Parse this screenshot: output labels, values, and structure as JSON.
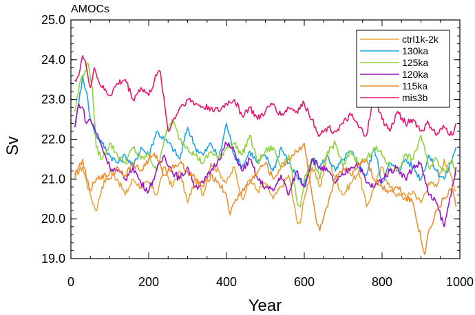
{
  "chart_data": {
    "type": "line",
    "title": "AMOCs",
    "xlabel": "Year",
    "ylabel": "Sv",
    "xlim": [
      0,
      1000
    ],
    "ylim": [
      19.0,
      25.0
    ],
    "x_ticks": [
      0,
      200,
      400,
      600,
      800,
      1000
    ],
    "y_ticks": [
      19.0,
      20.0,
      21.0,
      22.0,
      23.0,
      24.0,
      25.0
    ],
    "y_tick_labels": [
      "19.0",
      "20.0",
      "21.0",
      "22.0",
      "23.0",
      "24.0",
      "25.0"
    ],
    "x_tick_labels": [
      "0",
      "200",
      "400",
      "600",
      "800",
      "1000"
    ],
    "legend_position": "top-right",
    "grid": false,
    "series": [
      {
        "name": "ctrl1k-2k",
        "color": "#e8a23a",
        "x": [
          10,
          30,
          50,
          65,
          80,
          100,
          120,
          140,
          160,
          180,
          200,
          220,
          240,
          260,
          280,
          300,
          320,
          340,
          360,
          380,
          400,
          420,
          440,
          460,
          480,
          500,
          520,
          540,
          560,
          580,
          590,
          600,
          620,
          640,
          660,
          680,
          700,
          720,
          740,
          760,
          780,
          800,
          820,
          840,
          860,
          880,
          900,
          920,
          940,
          960,
          980,
          990
        ],
        "values": [
          21.1,
          21.3,
          20.6,
          20.2,
          20.8,
          21.2,
          21.0,
          20.6,
          21.0,
          20.8,
          20.9,
          20.6,
          21.3,
          20.8,
          21.2,
          20.4,
          21.0,
          20.6,
          21.4,
          21.2,
          20.9,
          21.3,
          20.5,
          21.0,
          20.7,
          20.9,
          20.5,
          20.8,
          21.1,
          20.0,
          19.9,
          20.5,
          21.3,
          20.8,
          21.6,
          21.0,
          20.6,
          20.9,
          21.2,
          20.3,
          20.8,
          21.3,
          20.8,
          20.6,
          20.5,
          20.7,
          20.4,
          20.9,
          20.8,
          21.5,
          21.0,
          20.7
        ]
      },
      {
        "name": "130ka",
        "color": "#1aa3e8",
        "x": [
          10,
          20,
          30,
          40,
          50,
          60,
          80,
          100,
          120,
          140,
          160,
          180,
          200,
          220,
          240,
          260,
          280,
          300,
          320,
          340,
          360,
          380,
          400,
          420,
          440,
          460,
          480,
          500,
          520,
          540,
          560,
          580,
          600,
          620,
          640,
          660,
          680,
          700,
          720,
          740,
          760,
          780,
          800,
          820,
          840,
          860,
          880,
          900,
          920,
          940,
          960,
          980,
          990
        ],
        "values": [
          22.3,
          22.9,
          23.6,
          23.2,
          22.5,
          22.2,
          21.9,
          21.6,
          21.4,
          21.6,
          21.3,
          21.8,
          21.6,
          22.2,
          22.0,
          21.8,
          21.5,
          22.3,
          21.8,
          21.6,
          21.9,
          21.5,
          22.4,
          21.6,
          21.3,
          21.7,
          21.4,
          21.6,
          21.2,
          21.8,
          21.4,
          21.1,
          20.8,
          21.5,
          21.3,
          21.6,
          21.2,
          21.5,
          21.7,
          21.3,
          21.1,
          21.8,
          20.9,
          21.4,
          21.2,
          21.5,
          21.3,
          21.0,
          21.6,
          21.2,
          21.0,
          21.5,
          21.8
        ]
      },
      {
        "name": "125ka",
        "color": "#8fd43a",
        "x": [
          10,
          25,
          35,
          45,
          55,
          65,
          80,
          100,
          120,
          140,
          160,
          180,
          200,
          220,
          240,
          260,
          280,
          300,
          320,
          340,
          360,
          380,
          400,
          420,
          440,
          460,
          480,
          500,
          520,
          540,
          560,
          580,
          590,
          600,
          620,
          640,
          660,
          680,
          700,
          720,
          740,
          760,
          780,
          800,
          820,
          840,
          860,
          880,
          900,
          920,
          940,
          960,
          980,
          990
        ],
        "values": [
          22.7,
          23.5,
          23.7,
          23.9,
          23.3,
          21.8,
          21.5,
          21.9,
          21.6,
          21.4,
          21.8,
          21.5,
          21.6,
          21.2,
          22.0,
          22.5,
          22.0,
          21.8,
          21.6,
          21.4,
          21.7,
          21.5,
          21.8,
          21.9,
          21.6,
          22.1,
          21.4,
          21.7,
          21.8,
          21.3,
          21.6,
          20.5,
          20.3,
          21.0,
          21.5,
          21.0,
          21.7,
          21.9,
          21.3,
          21.7,
          21.4,
          21.5,
          21.8,
          21.6,
          21.3,
          21.2,
          21.6,
          21.5,
          22.1,
          21.3,
          21.5,
          21.2,
          21.5,
          21.1
        ]
      },
      {
        "name": "120ka",
        "color": "#9b12c4",
        "x": [
          10,
          20,
          30,
          40,
          50,
          60,
          80,
          100,
          120,
          140,
          160,
          180,
          200,
          220,
          240,
          260,
          280,
          300,
          320,
          340,
          360,
          380,
          400,
          420,
          440,
          460,
          480,
          500,
          520,
          540,
          560,
          580,
          600,
          620,
          640,
          660,
          680,
          700,
          720,
          740,
          760,
          780,
          800,
          820,
          840,
          860,
          880,
          900,
          920,
          940,
          960,
          980,
          990
        ],
        "values": [
          22.3,
          22.9,
          22.8,
          22.4,
          22.5,
          22.3,
          21.8,
          21.3,
          21.2,
          21.0,
          21.3,
          20.9,
          20.7,
          21.2,
          21.6,
          21.2,
          21.0,
          21.3,
          20.8,
          20.9,
          21.2,
          21.5,
          21.9,
          21.7,
          21.2,
          21.5,
          21.0,
          20.8,
          20.7,
          21.1,
          20.6,
          21.2,
          20.8,
          21.5,
          21.3,
          21.2,
          20.9,
          21.1,
          21.3,
          21.4,
          20.9,
          20.8,
          21.0,
          21.2,
          21.3,
          21.0,
          21.3,
          21.4,
          20.6,
          20.4,
          19.8,
          20.8,
          21.3
        ]
      },
      {
        "name": "115ka",
        "color": "#ef8b2f",
        "x": [
          10,
          20,
          30,
          40,
          50,
          60,
          80,
          100,
          120,
          140,
          160,
          180,
          200,
          220,
          240,
          260,
          280,
          300,
          320,
          340,
          360,
          380,
          400,
          410,
          420,
          440,
          460,
          480,
          500,
          520,
          540,
          560,
          580,
          600,
          610,
          620,
          630,
          640,
          660,
          680,
          700,
          720,
          740,
          760,
          780,
          800,
          820,
          840,
          860,
          880,
          900,
          910,
          920,
          940,
          960,
          980,
          990
        ],
        "values": [
          21.0,
          21.3,
          21.5,
          21.0,
          20.7,
          20.9,
          21.1,
          21.0,
          21.3,
          21.1,
          21.4,
          21.2,
          21.5,
          21.6,
          21.1,
          21.3,
          21.4,
          21.2,
          21.0,
          20.8,
          21.1,
          20.9,
          20.6,
          20.1,
          20.4,
          20.7,
          20.9,
          21.2,
          21.4,
          21.0,
          21.3,
          21.5,
          21.7,
          21.9,
          21.2,
          20.6,
          20.0,
          19.7,
          20.3,
          21.0,
          21.3,
          21.1,
          21.4,
          21.5,
          21.0,
          20.8,
          20.7,
          20.8,
          20.6,
          20.4,
          19.5,
          19.1,
          19.7,
          20.2,
          20.5,
          20.8,
          20.3
        ]
      },
      {
        "name": "mis3b",
        "color": "#e8146e",
        "x": [
          10,
          20,
          30,
          40,
          50,
          60,
          70,
          80,
          100,
          120,
          140,
          160,
          180,
          200,
          220,
          230,
          250,
          260,
          280,
          300,
          320,
          340,
          360,
          380,
          400,
          420,
          440,
          460,
          480,
          500,
          520,
          540,
          560,
          580,
          600,
          620,
          640,
          660,
          680,
          700,
          720,
          740,
          760,
          780,
          800,
          820,
          840,
          860,
          880,
          900,
          920,
          940,
          960,
          980,
          990
        ],
        "values": [
          23.5,
          23.6,
          24.1,
          23.8,
          23.3,
          23.8,
          23.5,
          23.3,
          23.1,
          23.4,
          23.5,
          23.0,
          23.3,
          23.1,
          23.6,
          23.7,
          22.2,
          22.4,
          22.8,
          23.0,
          22.9,
          22.8,
          22.8,
          22.7,
          22.9,
          23.0,
          22.6,
          22.8,
          22.5,
          22.7,
          22.9,
          22.6,
          22.8,
          22.7,
          22.9,
          22.5,
          22.1,
          22.3,
          22.2,
          22.4,
          22.6,
          22.3,
          22.1,
          23.1,
          22.5,
          22.2,
          22.7,
          22.4,
          22.5,
          22.2,
          22.4,
          22.1,
          22.3,
          22.1,
          22.4
        ]
      }
    ]
  }
}
